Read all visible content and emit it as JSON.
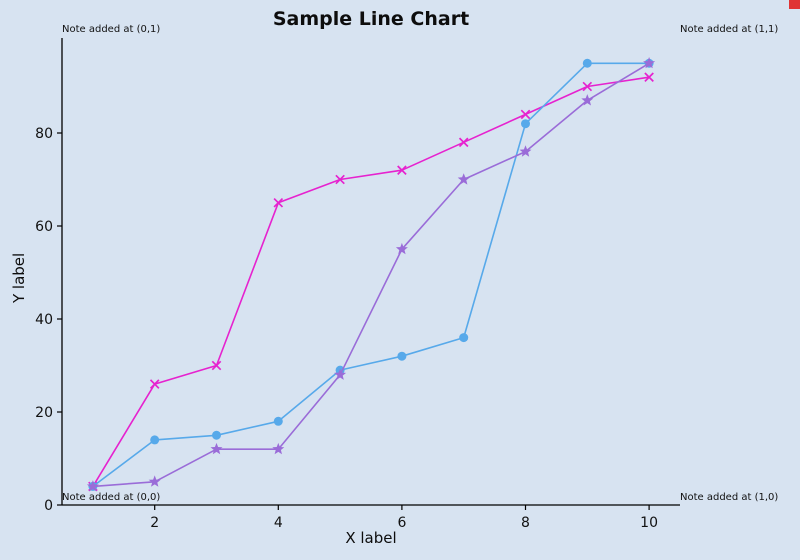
{
  "figure": {
    "background": "#d7e3f1",
    "artifact_color": "#e03434"
  },
  "annotations": [
    {
      "text": "Note added at (0,1)",
      "position": "top-left"
    },
    {
      "text": "Note added at (1,1)",
      "position": "top-right"
    },
    {
      "text": "Note added at (0,0)",
      "position": "bottom-left"
    },
    {
      "text": "Note added at (1,0)",
      "position": "bottom-right"
    }
  ],
  "chart_data": {
    "type": "line",
    "title": "Sample Line Chart",
    "xlabel": "X label",
    "ylabel": "Y label",
    "x": [
      1,
      2,
      3,
      4,
      5,
      6,
      7,
      8,
      9,
      10
    ],
    "series": [
      {
        "name": "magenta-x-series",
        "marker": "x",
        "color": "#e622cf",
        "values": [
          4,
          26,
          30,
          65,
          70,
          72,
          78,
          84,
          90,
          92
        ]
      },
      {
        "name": "blue-circle-series",
        "marker": "circle",
        "color": "#57a9ea",
        "values": [
          4,
          14,
          15,
          18,
          29,
          32,
          36,
          82,
          95,
          95
        ]
      },
      {
        "name": "purple-star-series",
        "marker": "star",
        "color": "#9a6cd8",
        "values": [
          4,
          5,
          12,
          12,
          28,
          55,
          70,
          76,
          87,
          95
        ]
      }
    ],
    "xticks": [
      2,
      4,
      6,
      8,
      10
    ],
    "yticks": [
      0,
      20,
      40,
      60,
      80
    ],
    "xlim": [
      0.5,
      10.5
    ],
    "ylim": [
      0,
      100
    ],
    "grid": false,
    "legend": "none"
  }
}
